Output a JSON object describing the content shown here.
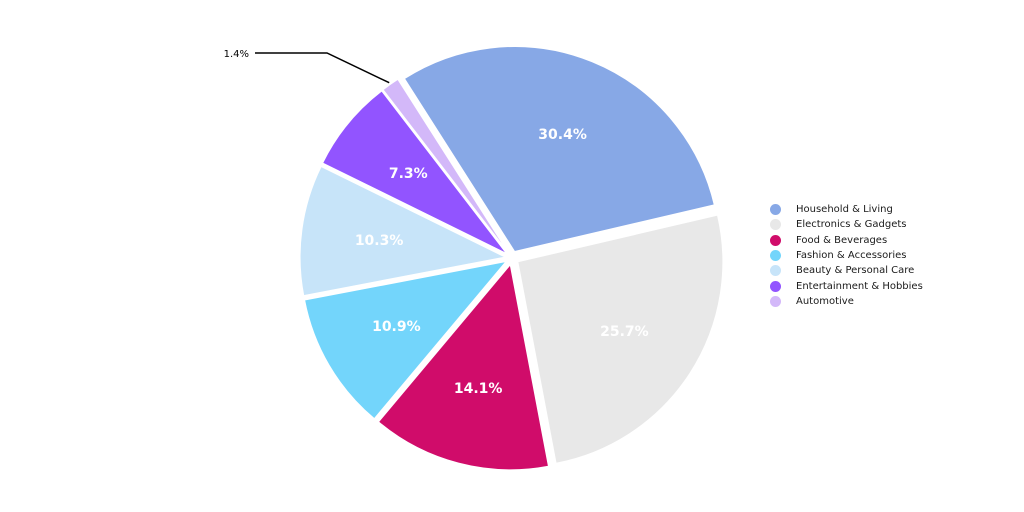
{
  "chart_data": {
    "type": "pie",
    "categories": [
      "Household & Living",
      "Electronics & Gadgets",
      "Food & Beverages",
      "Fashion & Accessories",
      "Beauty & Personal Care",
      "Entertainment & Hobbies",
      "Automotive"
    ],
    "values": [
      30.4,
      25.7,
      14.1,
      10.9,
      10.3,
      7.3,
      1.4
    ],
    "value_labels": [
      "30.4%",
      "25.7%",
      "14.1%",
      "10.9%",
      "10.3%",
      "7.3%",
      "1.4%"
    ],
    "colors": [
      "#87a8e6",
      "#e8e8e8",
      "#d00c6a",
      "#73d5fb",
      "#c7e4f9",
      "#9254ff",
      "#d3b8f9"
    ],
    "legend_position": "right",
    "exploded": true,
    "title": "",
    "xlabel": "",
    "ylabel": ""
  }
}
